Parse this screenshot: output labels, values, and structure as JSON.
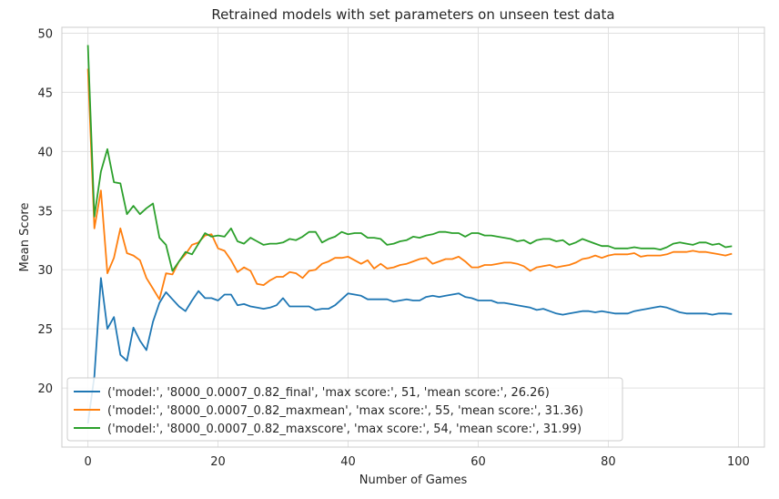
{
  "chart_data": {
    "type": "line",
    "title": "Retrained models with set parameters on unseen test data",
    "xlabel": "Number of Games",
    "ylabel": "Mean Score",
    "xlim": [
      -4,
      104
    ],
    "ylim": [
      15,
      50.5
    ],
    "xticks": [
      0,
      20,
      40,
      60,
      80,
      100
    ],
    "yticks": [
      20,
      25,
      30,
      35,
      40,
      45,
      50
    ],
    "grid": true,
    "legend_position": "lower-left",
    "series": [
      {
        "name": "('model:', '8000_0.0007_0.82_final', 'max score:', 51, 'mean score:', 26.26)",
        "color": "#1f77b4",
        "x": [
          0,
          1,
          2,
          3,
          4,
          5,
          6,
          7,
          8,
          9,
          10,
          11,
          12,
          13,
          14,
          15,
          16,
          17,
          18,
          19,
          20,
          21,
          22,
          23,
          24,
          25,
          26,
          27,
          28,
          29,
          30,
          31,
          32,
          33,
          34,
          35,
          36,
          37,
          38,
          39,
          40,
          41,
          42,
          43,
          44,
          45,
          46,
          47,
          48,
          49,
          50,
          51,
          52,
          53,
          54,
          55,
          56,
          57,
          58,
          59,
          60,
          61,
          62,
          63,
          64,
          65,
          66,
          67,
          68,
          69,
          70,
          71,
          72,
          73,
          74,
          75,
          76,
          77,
          78,
          79,
          80,
          81,
          82,
          83,
          84,
          85,
          86,
          87,
          88,
          89,
          90,
          91,
          92,
          93,
          94,
          95,
          96,
          97,
          98,
          99
        ],
        "y": [
          17.0,
          21.0,
          29.3,
          25.0,
          26.0,
          22.8,
          22.3,
          25.1,
          24.0,
          23.2,
          25.6,
          27.2,
          28.1,
          27.5,
          26.9,
          26.5,
          27.4,
          28.2,
          27.6,
          27.6,
          27.4,
          27.9,
          27.9,
          27.0,
          27.1,
          26.9,
          26.8,
          26.7,
          26.8,
          27.0,
          27.6,
          26.9,
          26.9,
          26.9,
          26.9,
          26.6,
          26.7,
          26.7,
          27.0,
          27.5,
          28.0,
          27.9,
          27.8,
          27.5,
          27.5,
          27.5,
          27.5,
          27.3,
          27.4,
          27.5,
          27.4,
          27.4,
          27.7,
          27.8,
          27.7,
          27.8,
          27.9,
          28.0,
          27.7,
          27.6,
          27.4,
          27.4,
          27.4,
          27.2,
          27.2,
          27.1,
          27.0,
          26.9,
          26.8,
          26.6,
          26.7,
          26.5,
          26.3,
          26.2,
          26.3,
          26.4,
          26.5,
          26.5,
          26.4,
          26.5,
          26.4,
          26.3,
          26.3,
          26.3,
          26.5,
          26.6,
          26.7,
          26.8,
          26.9,
          26.8,
          26.6,
          26.4,
          26.3,
          26.3,
          26.3,
          26.3,
          26.2,
          26.3,
          26.3,
          26.26
        ]
      },
      {
        "name": "('model:', '8000_0.0007_0.82_maxmean', 'max score:', 55, 'mean score:', 31.36)",
        "color": "#ff7f0e",
        "x": [
          0,
          1,
          2,
          3,
          4,
          5,
          6,
          7,
          8,
          9,
          10,
          11,
          12,
          13,
          14,
          15,
          16,
          17,
          18,
          19,
          20,
          21,
          22,
          23,
          24,
          25,
          26,
          27,
          28,
          29,
          30,
          31,
          32,
          33,
          34,
          35,
          36,
          37,
          38,
          39,
          40,
          41,
          42,
          43,
          44,
          45,
          46,
          47,
          48,
          49,
          50,
          51,
          52,
          53,
          54,
          55,
          56,
          57,
          58,
          59,
          60,
          61,
          62,
          63,
          64,
          65,
          66,
          67,
          68,
          69,
          70,
          71,
          72,
          73,
          74,
          75,
          76,
          77,
          78,
          79,
          80,
          81,
          82,
          83,
          84,
          85,
          86,
          87,
          88,
          89,
          90,
          91,
          92,
          93,
          94,
          95,
          96,
          97,
          98,
          99
        ],
        "y": [
          47.0,
          33.5,
          36.7,
          29.7,
          31.0,
          33.5,
          31.4,
          31.2,
          30.8,
          29.3,
          28.4,
          27.5,
          29.7,
          29.6,
          30.7,
          31.3,
          32.1,
          32.3,
          32.9,
          33.0,
          31.8,
          31.6,
          30.8,
          29.8,
          30.2,
          29.9,
          28.8,
          28.7,
          29.1,
          29.4,
          29.4,
          29.8,
          29.7,
          29.3,
          29.9,
          30.0,
          30.5,
          30.7,
          31.0,
          31.0,
          31.1,
          30.8,
          30.5,
          30.8,
          30.1,
          30.5,
          30.1,
          30.2,
          30.4,
          30.5,
          30.7,
          30.9,
          31.0,
          30.5,
          30.7,
          30.9,
          30.9,
          31.1,
          30.7,
          30.2,
          30.2,
          30.4,
          30.4,
          30.5,
          30.6,
          30.6,
          30.5,
          30.3,
          29.9,
          30.2,
          30.3,
          30.4,
          30.2,
          30.3,
          30.4,
          30.6,
          30.9,
          31.0,
          31.2,
          31.0,
          31.2,
          31.3,
          31.3,
          31.3,
          31.4,
          31.1,
          31.2,
          31.2,
          31.2,
          31.3,
          31.5,
          31.5,
          31.5,
          31.6,
          31.5,
          31.5,
          31.4,
          31.3,
          31.2,
          31.36
        ]
      },
      {
        "name": "('model:', '8000_0.0007_0.82_maxscore', 'max score:', 54, 'mean score:', 31.99)",
        "color": "#2ca02c",
        "x": [
          0,
          1,
          2,
          3,
          4,
          5,
          6,
          7,
          8,
          9,
          10,
          11,
          12,
          13,
          14,
          15,
          16,
          17,
          18,
          19,
          20,
          21,
          22,
          23,
          24,
          25,
          26,
          27,
          28,
          29,
          30,
          31,
          32,
          33,
          34,
          35,
          36,
          37,
          38,
          39,
          40,
          41,
          42,
          43,
          44,
          45,
          46,
          47,
          48,
          49,
          50,
          51,
          52,
          53,
          54,
          55,
          56,
          57,
          58,
          59,
          60,
          61,
          62,
          63,
          64,
          65,
          66,
          67,
          68,
          69,
          70,
          71,
          72,
          73,
          74,
          75,
          76,
          77,
          78,
          79,
          80,
          81,
          82,
          83,
          84,
          85,
          86,
          87,
          88,
          89,
          90,
          91,
          92,
          93,
          94,
          95,
          96,
          97,
          98,
          99
        ],
        "y": [
          49.0,
          34.5,
          38.3,
          40.2,
          37.4,
          37.3,
          34.7,
          35.4,
          34.7,
          35.2,
          35.6,
          32.7,
          32.1,
          29.9,
          30.7,
          31.5,
          31.3,
          32.2,
          33.1,
          32.8,
          32.9,
          32.8,
          33.5,
          32.4,
          32.2,
          32.7,
          32.4,
          32.1,
          32.2,
          32.2,
          32.3,
          32.6,
          32.5,
          32.8,
          33.2,
          33.2,
          32.3,
          32.6,
          32.8,
          33.2,
          33.0,
          33.1,
          33.1,
          32.7,
          32.7,
          32.6,
          32.1,
          32.2,
          32.4,
          32.5,
          32.8,
          32.7,
          32.9,
          33.0,
          33.2,
          33.2,
          33.1,
          33.1,
          32.8,
          33.1,
          33.1,
          32.9,
          32.9,
          32.8,
          32.7,
          32.6,
          32.4,
          32.5,
          32.2,
          32.5,
          32.6,
          32.6,
          32.4,
          32.5,
          32.1,
          32.3,
          32.6,
          32.4,
          32.2,
          32.0,
          32.0,
          31.8,
          31.8,
          31.8,
          31.9,
          31.8,
          31.8,
          31.8,
          31.7,
          31.9,
          32.2,
          32.3,
          32.2,
          32.1,
          32.3,
          32.3,
          32.1,
          32.2,
          31.9,
          31.99
        ]
      }
    ]
  }
}
